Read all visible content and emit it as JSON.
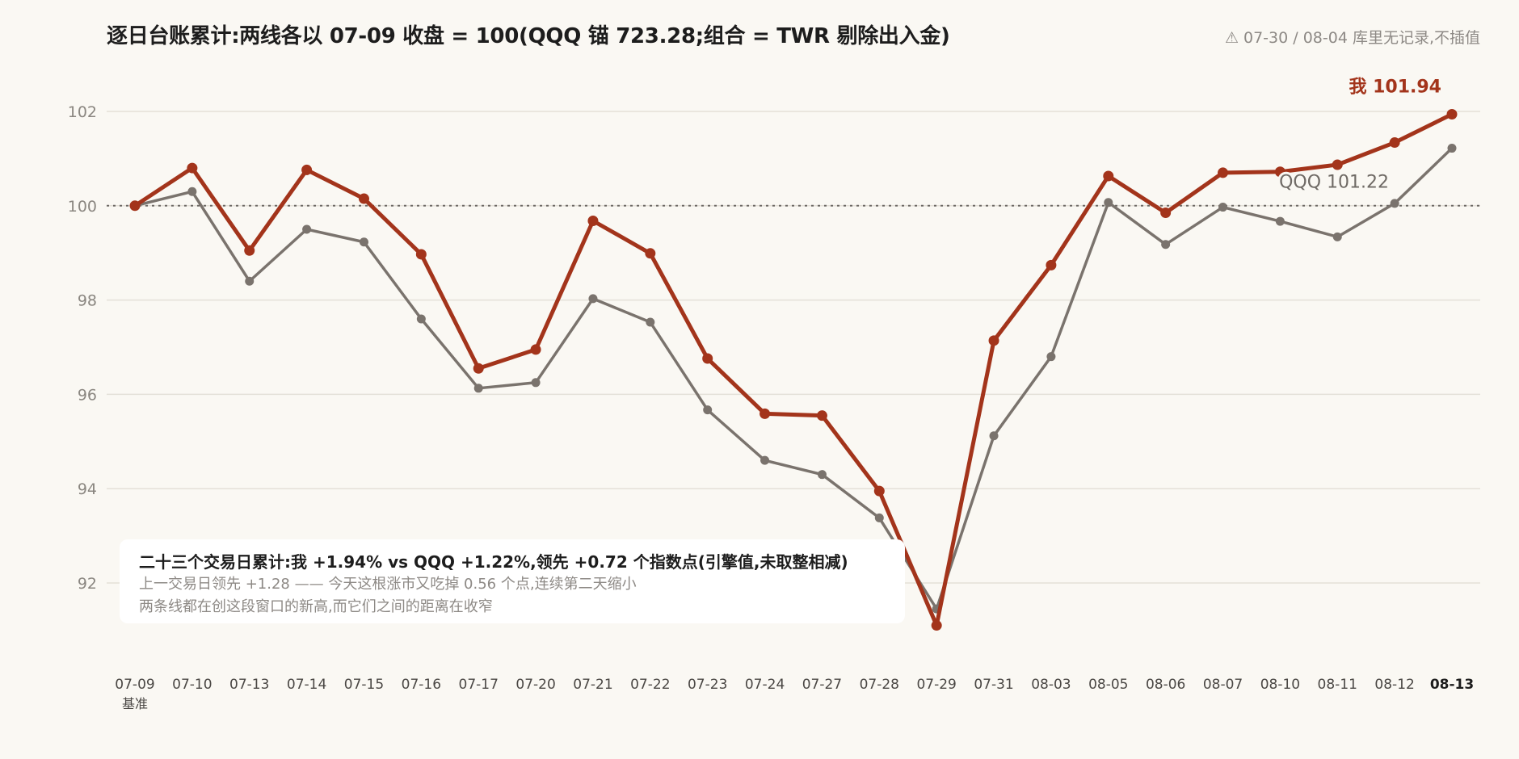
{
  "title": "逐日台账累计:两线各以 07-09 收盘 = 100(QQQ 锚 723.28;组合 = TWR 剔除出入金)",
  "note": "⚠ 07-30 / 08-04 库里无记录,不插值",
  "summary": {
    "headline": "二十三个交易日累计:我 +1.94% vs QQQ +1.22%,领先 +0.72 个指数点(引擎值,未取整相减)",
    "line1": "上一交易日领先 +1.28 —— 今天这根涨市又吃掉 0.56 个点,连续第二天缩小",
    "line2": "两条线都在创这段窗口的新高,而它们之间的距离在收窄"
  },
  "colors": {
    "me": "#a3341b",
    "qqq": "#7a736d",
    "grid": "#e4e0d8",
    "baseline": "#6e6a66",
    "background": "#faf8f3"
  },
  "chart_data": {
    "type": "line",
    "categories": [
      "07-09",
      "07-10",
      "07-13",
      "07-14",
      "07-15",
      "07-16",
      "07-17",
      "07-20",
      "07-21",
      "07-22",
      "07-23",
      "07-24",
      "07-27",
      "07-28",
      "07-29",
      "07-31",
      "08-03",
      "08-05",
      "08-06",
      "08-07",
      "08-10",
      "08-11",
      "08-12",
      "08-13"
    ],
    "base_label": "基准",
    "ylim": [
      91,
      102.5
    ],
    "yticks": [
      92,
      94,
      96,
      98,
      100,
      102
    ],
    "baseline": 100,
    "grid": true,
    "series": [
      {
        "name": "我",
        "color": "#a3341b",
        "values": [
          100.0,
          100.8,
          99.05,
          100.76,
          100.15,
          98.97,
          96.55,
          96.95,
          99.68,
          98.99,
          96.76,
          95.59,
          95.55,
          93.95,
          91.1,
          97.14,
          98.74,
          100.63,
          99.85,
          100.7,
          100.72,
          100.87,
          101.34,
          101.94
        ],
        "end_label": "我 101.94"
      },
      {
        "name": "QQQ",
        "color": "#7a736d",
        "values": [
          100.0,
          100.3,
          98.4,
          99.5,
          99.23,
          97.6,
          96.13,
          96.25,
          98.03,
          97.53,
          95.67,
          94.6,
          94.3,
          93.38,
          91.45,
          95.12,
          96.8,
          100.07,
          99.18,
          99.97,
          99.67,
          99.34,
          100.05,
          101.22
        ],
        "end_label": "QQQ 101.22"
      }
    ]
  }
}
